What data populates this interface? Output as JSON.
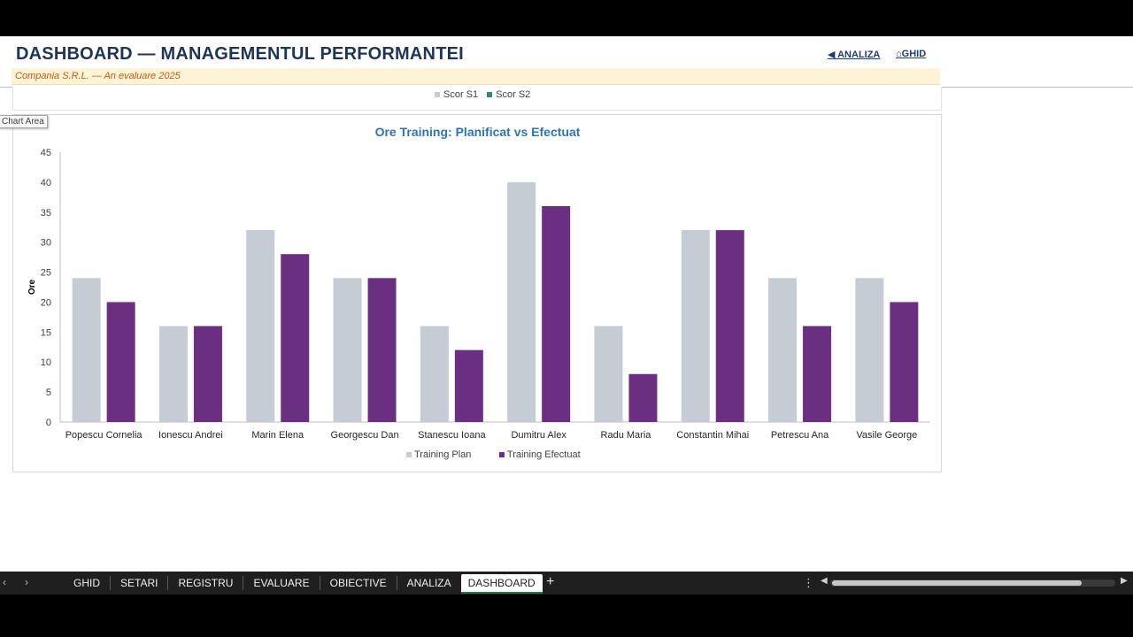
{
  "header": {
    "title": "DASHBOARD — MANAGEMENTUL PERFORMANTEI",
    "subtitle": "Compania S.R.L. — An evaluare 2025",
    "link_analiza": "◀ ANALIZA",
    "link_ghid": "⌂GHID"
  },
  "prev_chart_legend": [
    {
      "label": "Scor S1",
      "color": "#c9cdd3"
    },
    {
      "label": "Scor S2",
      "color": "#2e8b7a"
    }
  ],
  "tooltip": "Chart Area",
  "chart_data": {
    "type": "bar",
    "title": "Ore Training: Planificat vs Efectuat",
    "xlabel": "",
    "ylabel": "Ore",
    "ylim": [
      0,
      45
    ],
    "yticks": [
      0,
      5,
      10,
      15,
      20,
      25,
      30,
      35,
      40,
      45
    ],
    "grid": false,
    "legend_position": "bottom",
    "categories": [
      "Popescu Cornelia",
      "Ionescu Andrei",
      "Marin Elena",
      "Georgescu Dan",
      "Stanescu Ioana",
      "Dumitru Alex",
      "Radu Maria",
      "Constantin Mihai",
      "Petrescu Ana",
      "Vasile George"
    ],
    "series": [
      {
        "name": "Training Plan",
        "color": "#c5ccd4",
        "values": [
          24,
          16,
          32,
          24,
          16,
          40,
          16,
          32,
          24,
          24
        ]
      },
      {
        "name": "Training Efectuat",
        "color": "#6b2f82",
        "values": [
          20,
          16,
          28,
          24,
          12,
          36,
          8,
          32,
          16,
          20
        ]
      }
    ]
  },
  "sheet_tabs": [
    "GHID",
    "SETARI",
    "REGISTRU",
    "EVALUARE",
    "OBIECTIVE",
    "ANALIZA",
    "DASHBOARD"
  ],
  "active_tab": "DASHBOARD",
  "icons": {
    "nav_prev": "‹",
    "nav_next": "›",
    "add_sheet": "+",
    "more": "⋮",
    "scroll_left": "◀",
    "scroll_right": "▶"
  }
}
